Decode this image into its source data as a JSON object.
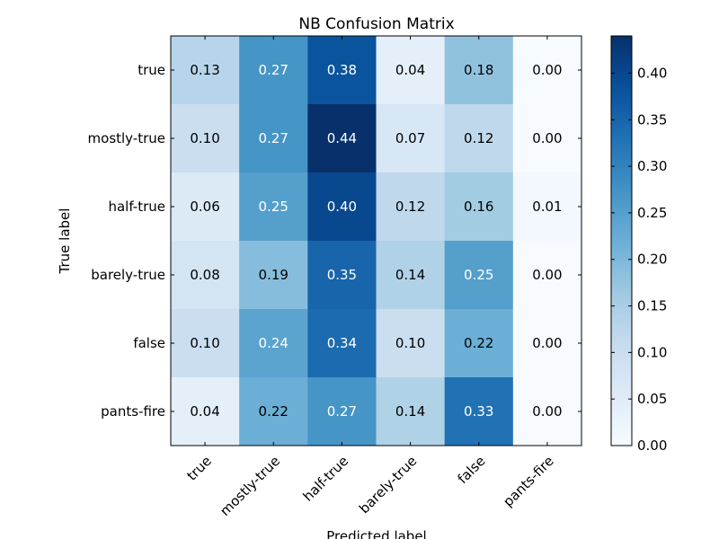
{
  "chart_data": {
    "type": "heatmap",
    "title": "NB Confusion Matrix",
    "xlabel": "Predicted label",
    "ylabel": "True label",
    "x_categories": [
      "true",
      "mostly-true",
      "half-true",
      "barely-true",
      "false",
      "pants-fire"
    ],
    "y_categories": [
      "true",
      "mostly-true",
      "half-true",
      "barely-true",
      "false",
      "pants-fire"
    ],
    "values": [
      [
        0.13,
        0.27,
        0.38,
        0.04,
        0.18,
        0.0
      ],
      [
        0.1,
        0.27,
        0.44,
        0.07,
        0.12,
        0.0
      ],
      [
        0.06,
        0.25,
        0.4,
        0.12,
        0.16,
        0.01
      ],
      [
        0.08,
        0.19,
        0.35,
        0.14,
        0.25,
        0.0
      ],
      [
        0.1,
        0.24,
        0.34,
        0.1,
        0.22,
        0.0
      ],
      [
        0.04,
        0.22,
        0.27,
        0.14,
        0.33,
        0.0
      ]
    ],
    "value_labels": [
      [
        "0.13",
        "0.27",
        "0.38",
        "0.04",
        "0.18",
        "0.00"
      ],
      [
        "0.10",
        "0.27",
        "0.44",
        "0.07",
        "0.12",
        "0.00"
      ],
      [
        "0.06",
        "0.25",
        "0.40",
        "0.12",
        "0.16",
        "0.01"
      ],
      [
        "0.08",
        "0.19",
        "0.35",
        "0.14",
        "0.25",
        "0.00"
      ],
      [
        "0.10",
        "0.24",
        "0.34",
        "0.10",
        "0.22",
        "0.00"
      ],
      [
        "0.04",
        "0.22",
        "0.27",
        "0.14",
        "0.33",
        "0.00"
      ]
    ],
    "colorbar": {
      "range": [
        0.0,
        0.44
      ],
      "ticks": [
        0.0,
        0.05,
        0.1,
        0.15,
        0.2,
        0.25,
        0.3,
        0.35,
        0.4
      ],
      "tick_labels": [
        "0.00",
        "0.05",
        "0.10",
        "0.15",
        "0.20",
        "0.25",
        "0.30",
        "0.35",
        "0.40"
      ]
    },
    "colormap": "Blues",
    "grid": false,
    "colorbar_placement": "right"
  }
}
